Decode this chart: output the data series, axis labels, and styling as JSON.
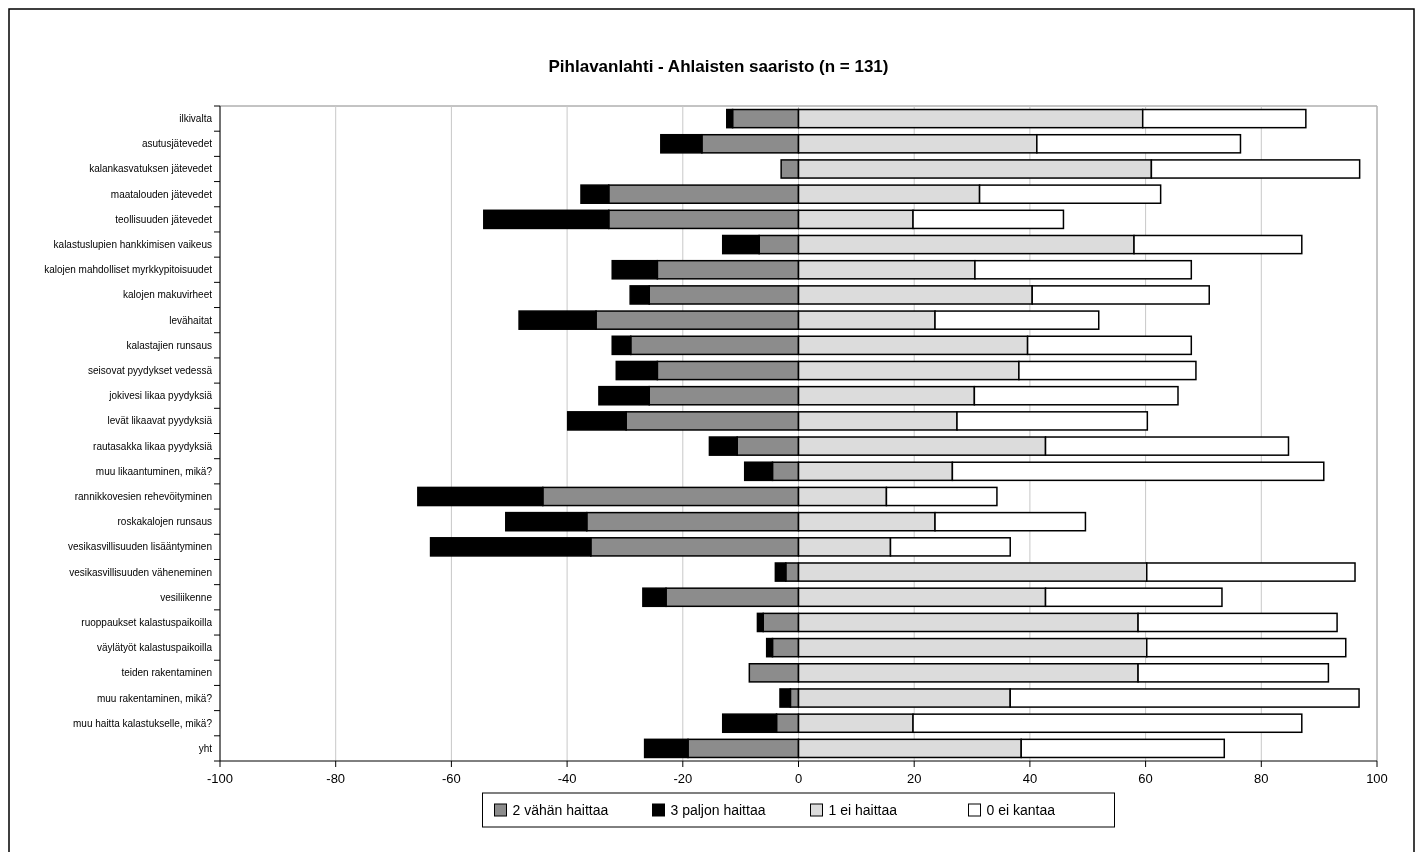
{
  "chart_data": {
    "type": "bar",
    "orientation": "horizontal",
    "stacked": true,
    "title": "Pihlavanlahti - Ahlaisten saaristo (n = 131)",
    "categories": [
      "ilkivalta",
      "asutusjätevedet",
      "kalankasvatuksen jätevedet",
      "maatalouden jätevedet",
      "teollisuuden jätevedet",
      "kalastuslupien hankkimisen vaikeus",
      "kalojen mahdolliset myrkkypitoisuudet",
      "kalojen makuvirheet",
      "levähaitat",
      "kalastajien runsaus",
      "seisovat pyydykset vedessä",
      "jokivesi likaa pyydyksiä",
      "levät likaavat pyydyksiä",
      "rautasakka likaa pyydyksiä",
      "muu likaantuminen, mikä?",
      "rannikkovesien rehevöityminen",
      "roskakalojen runsaus",
      "vesikasvillisuuden lisääntyminen",
      "vesikasvillisuuden väheneminen",
      "vesiliikenne",
      "ruoppaukset kalastuspaikoilla",
      "väylätyöt kalastuspaikoilla",
      "teiden rakentaminen",
      "muu rakentaminen, mikä?",
      "muu haitta kalastukselle, mikä?",
      "yht"
    ],
    "series": [
      {
        "name": "2 vähän haittaa",
        "color": "#8c8c8c",
        "values": [
          -11.4,
          -16.7,
          -3.0,
          -32.8,
          -32.8,
          -6.8,
          -24.4,
          -25.8,
          -35.0,
          -29.0,
          -24.4,
          -25.8,
          -29.8,
          -10.6,
          -4.5,
          -44.2,
          -36.6,
          -35.9,
          -2.2,
          -22.9,
          -6.1,
          -4.5,
          -8.5,
          -1.4,
          -3.8,
          -19.1
        ]
      },
      {
        "name": "3 paljon haittaa",
        "color": "#000000",
        "values": [
          -1.0,
          -7.1,
          0,
          -4.8,
          -21.6,
          -6.3,
          -7.8,
          -3.3,
          -13.3,
          -3.2,
          -7.1,
          -8.7,
          -10.1,
          -4.8,
          -4.8,
          -21.6,
          -14.0,
          -27.7,
          -1.8,
          -4.0,
          -1.0,
          -1.0,
          0,
          -1.8,
          -9.3,
          -7.5
        ]
      },
      {
        "name": "1 ei haittaa",
        "color": "#dcdcdc",
        "values": [
          59.5,
          41.2,
          61.0,
          31.3,
          19.8,
          58.0,
          30.5,
          40.4,
          23.6,
          39.6,
          38.1,
          30.4,
          27.4,
          42.7,
          26.6,
          15.2,
          23.6,
          15.9,
          60.2,
          42.7,
          58.7,
          60.2,
          58.7,
          36.6,
          19.8,
          38.5
        ]
      },
      {
        "name": "0 ei kantaa",
        "color": "#ffffff",
        "values": [
          28.2,
          35.2,
          36.0,
          31.3,
          26.0,
          29.0,
          37.4,
          30.6,
          28.3,
          28.3,
          30.6,
          35.2,
          32.9,
          42.0,
          64.2,
          19.1,
          26.0,
          20.7,
          36.0,
          30.5,
          34.4,
          34.4,
          32.9,
          60.3,
          67.2,
          35.1
        ]
      }
    ],
    "xlim": [
      -100,
      100
    ],
    "xticks": [
      -100,
      -80,
      -60,
      -40,
      -20,
      0,
      20,
      40,
      60,
      80,
      100
    ],
    "grid": "x",
    "legend": "bottom"
  }
}
